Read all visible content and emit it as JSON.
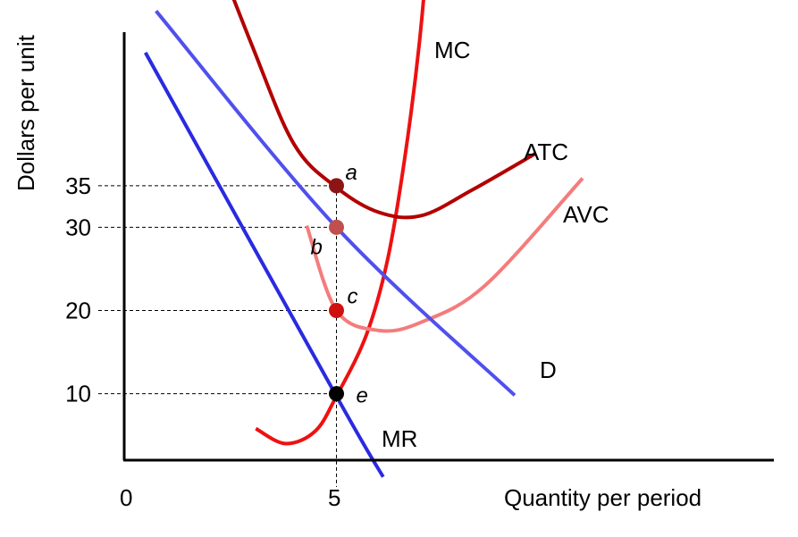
{
  "chart_data": {
    "type": "line",
    "xlabel": "Quantity per period",
    "ylabel": "Dollars per unit",
    "x_ticks": [
      "0",
      "5"
    ],
    "y_ticks": [
      "10",
      "20",
      "30",
      "35"
    ],
    "series": [
      {
        "name": "MC",
        "color": "#ee1111",
        "width": 4,
        "points": [
          [
            3.1,
            5.8
          ],
          [
            3.8,
            4
          ],
          [
            4.5,
            5.5
          ],
          [
            5.0,
            9.7
          ],
          [
            5.7,
            17
          ],
          [
            6.2,
            26
          ],
          [
            6.6,
            38
          ],
          [
            6.95,
            52
          ],
          [
            7.25,
            69
          ]
        ]
      },
      {
        "name": "ATC",
        "color": "#b30000",
        "width": 4,
        "points": [
          [
            1.7,
            69
          ],
          [
            3.0,
            52
          ],
          [
            4.0,
            40
          ],
          [
            5.0,
            34.8
          ],
          [
            6.0,
            31.8
          ],
          [
            7.0,
            31.4
          ],
          [
            8.2,
            34.5
          ],
          [
            9.7,
            38.9
          ]
        ]
      },
      {
        "name": "AVC",
        "color": "#f47c7c",
        "width": 4,
        "points": [
          [
            4.3,
            30.2
          ],
          [
            5.0,
            20
          ],
          [
            6.0,
            17.6
          ],
          [
            7.0,
            18.6
          ],
          [
            8.5,
            23
          ],
          [
            10.8,
            35.9
          ]
        ]
      },
      {
        "name": "D",
        "color": "#5050ee",
        "width": 4,
        "points": [
          [
            0.75,
            56
          ],
          [
            5.0,
            30
          ],
          [
            9.2,
            9.8
          ]
        ]
      },
      {
        "name": "MR",
        "color": "#2a2ae0",
        "width": 4,
        "points": [
          [
            0.5,
            51
          ],
          [
            5.0,
            9.7
          ],
          [
            6.1,
            0
          ]
        ]
      }
    ],
    "points": [
      {
        "label": "a",
        "x": 5,
        "y": 35,
        "color": "#8b1515"
      },
      {
        "label": "b",
        "x": 5,
        "y": 30,
        "color": "#c0504d"
      },
      {
        "label": "c",
        "x": 5,
        "y": 20,
        "color": "#d01010"
      },
      {
        "label": "e",
        "x": 5,
        "y": 10,
        "color": "#000000"
      }
    ],
    "guides": {
      "x": 5,
      "y_values": [
        35,
        30,
        20,
        10
      ]
    },
    "xlim": [
      0,
      15
    ],
    "ylim": [
      0,
      68
    ]
  }
}
